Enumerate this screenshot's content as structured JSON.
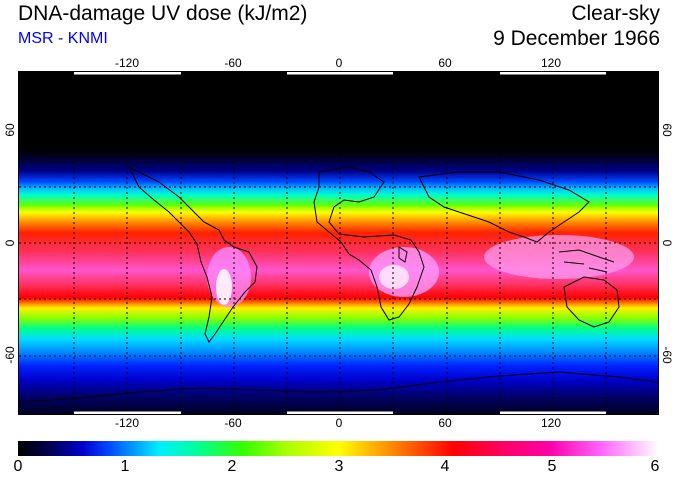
{
  "header": {
    "title": "DNA-damage UV dose (kJ/m2)",
    "source": "MSR - KNMI",
    "sky_condition": "Clear-sky",
    "date": "9 December 1966"
  },
  "map": {
    "longitude_ticks": [
      "-120",
      "-60",
      "0",
      "60",
      "120"
    ],
    "latitude_ticks": [
      "60",
      "0",
      "-60"
    ],
    "gridlines": "dotted, every 30 degrees"
  },
  "colorbar": {
    "ticks": [
      "0",
      "1",
      "2",
      "3",
      "4",
      "5",
      "6"
    ],
    "colors": [
      "#000000",
      "#0000cc",
      "#00eeff",
      "#33ff00",
      "#ffff00",
      "#ff0000",
      "#ff00aa",
      "#ffffff"
    ]
  }
}
